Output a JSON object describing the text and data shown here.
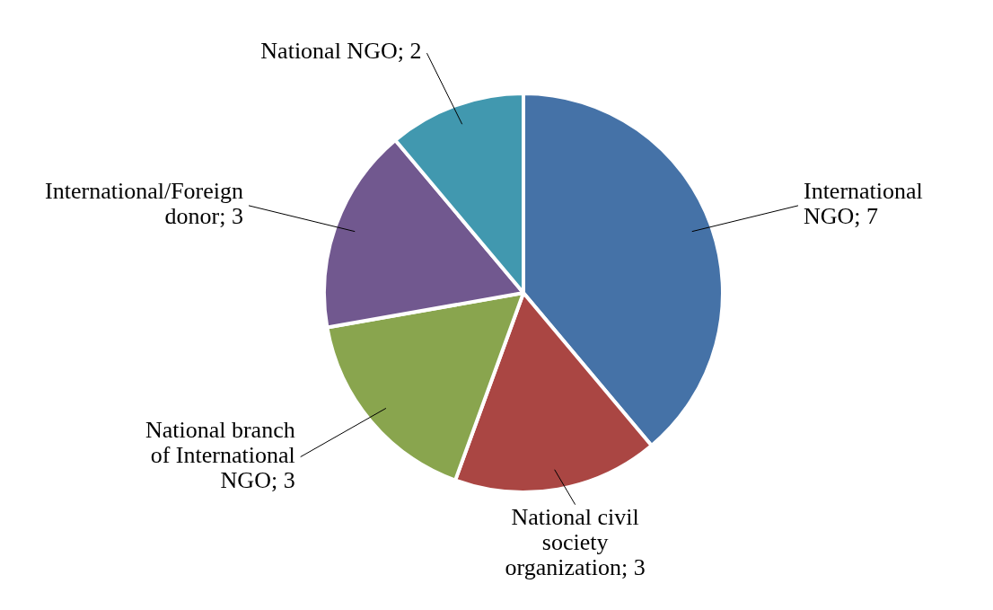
{
  "chart_data": {
    "type": "pie",
    "categories": [
      "International NGO",
      "National civil society organization",
      "National branch of International NGO",
      "International/Foreign donor",
      "National NGO"
    ],
    "values": [
      7,
      3,
      3,
      3,
      2
    ],
    "value_labels": [
      "; 7",
      "; 3",
      "; 3",
      "; 3",
      "; 2"
    ],
    "colors": [
      "#4572a7",
      "#aa4643",
      "#89a54e",
      "#71588f",
      "#4198af"
    ]
  }
}
